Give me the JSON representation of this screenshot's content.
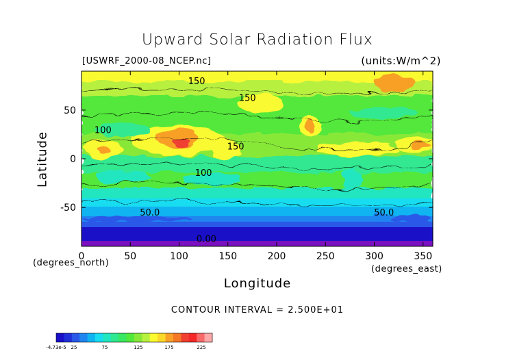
{
  "chart_data": {
    "type": "heatmap",
    "title": "Upward Solar Radiation Flux",
    "subtitle_left": "[USWRF_2000-08_NCEP.nc]",
    "subtitle_right": "(units:W/m^2)",
    "xlabel": "Longitude",
    "ylabel": "Latitude",
    "x_unit_label": "(degrees_north)",
    "x_unit_label_east": "(degrees_east)",
    "contour_interval_text": "CONTOUR INTERVAL = 2.500E+01",
    "xlim": [
      0,
      360
    ],
    "ylim": [
      -90,
      90
    ],
    "x_ticks": [
      0,
      50,
      100,
      150,
      200,
      250,
      300,
      350
    ],
    "y_ticks": [
      -50,
      0,
      50
    ],
    "contour_labels": [
      {
        "text": "150",
        "lon": 118,
        "lat": 80
      },
      {
        "text": "150",
        "lon": 170,
        "lat": 63
      },
      {
        "text": "100",
        "lon": 22,
        "lat": 30
      },
      {
        "text": "150",
        "lon": 158,
        "lat": 13
      },
      {
        "text": "100",
        "lon": 125,
        "lat": -14
      },
      {
        "text": "50.0",
        "lon": 70,
        "lat": -55
      },
      {
        "text": "50.0",
        "lon": 310,
        "lat": -55
      },
      {
        "text": "0.00",
        "lon": 128,
        "lat": -82
      }
    ],
    "colorbar": {
      "labels": [
        "-4.73e-5",
        "25",
        "75",
        "125",
        "175",
        "225"
      ],
      "colors": [
        "#1a10c8",
        "#2030d8",
        "#2a58e8",
        "#1f86f0",
        "#10b4f0",
        "#18dcf0",
        "#22e6c0",
        "#30e890",
        "#38e860",
        "#52e83a",
        "#88e838",
        "#b8f040",
        "#fafa30",
        "#fcd82a",
        "#f8a028",
        "#f47826",
        "#f04030",
        "#f42828",
        "#f86a6a",
        "#fca8a8"
      ]
    }
  }
}
